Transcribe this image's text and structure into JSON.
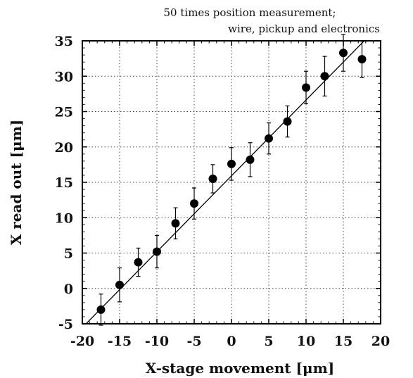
{
  "chart_data": {
    "type": "scatter",
    "annotation_lines": [
      "50 times position measurement;",
      "wire, pickup and electronics"
    ],
    "xlabel": "X-stage movement [μm]",
    "ylabel": "X read out [μm]",
    "xlim": [
      -20,
      20
    ],
    "ylim": [
      -5,
      35
    ],
    "xticks": [
      -20,
      -15,
      -10,
      -5,
      0,
      5,
      10,
      15,
      20
    ],
    "yticks": [
      -5,
      0,
      5,
      10,
      15,
      20,
      25,
      30,
      35
    ],
    "grid": true,
    "points": [
      {
        "x": -17.5,
        "y": -3.0,
        "err": 2.2
      },
      {
        "x": -15.0,
        "y": 0.5,
        "err": 2.4
      },
      {
        "x": -12.5,
        "y": 3.7,
        "err": 2.0
      },
      {
        "x": -10.0,
        "y": 5.2,
        "err": 2.3
      },
      {
        "x": -7.5,
        "y": 9.2,
        "err": 2.2
      },
      {
        "x": -5.0,
        "y": 12.0,
        "err": 2.2
      },
      {
        "x": -2.5,
        "y": 15.5,
        "err": 2.0
      },
      {
        "x": 0.0,
        "y": 17.6,
        "err": 2.3
      },
      {
        "x": 2.5,
        "y": 18.2,
        "err": 2.4
      },
      {
        "x": 5.0,
        "y": 21.2,
        "err": 2.2
      },
      {
        "x": 7.5,
        "y": 23.6,
        "err": 2.2
      },
      {
        "x": 10.0,
        "y": 28.4,
        "err": 2.3
      },
      {
        "x": 12.5,
        "y": 30.0,
        "err": 2.8
      },
      {
        "x": 15.0,
        "y": 33.3,
        "err": 2.6
      },
      {
        "x": 17.5,
        "y": 32.4,
        "err": 2.6
      }
    ],
    "fit_line": {
      "x": [
        -19.5,
        17.8
      ],
      "y": [
        -5.0,
        35.0
      ]
    }
  }
}
